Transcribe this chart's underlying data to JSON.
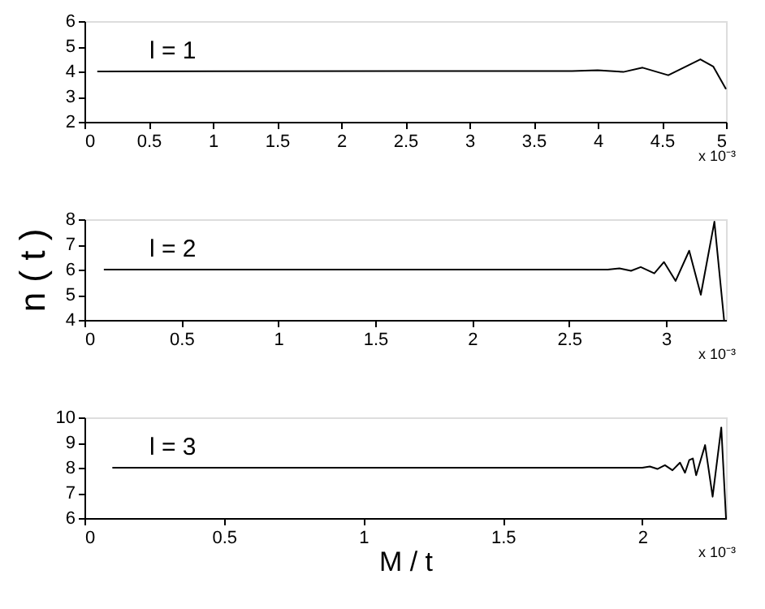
{
  "chart_data": [
    {
      "type": "line",
      "xlim": [
        0,
        5
      ],
      "xticks": [
        0,
        0.5,
        1,
        1.5,
        2,
        2.5,
        3,
        3.5,
        4,
        4.5,
        5
      ],
      "ylim": [
        2,
        6
      ],
      "yticks": [
        2,
        3,
        4,
        5,
        6
      ],
      "grid": false,
      "annotations": [
        "l = 1",
        "x 10⁻³"
      ],
      "series": [
        {
          "color": "#000000",
          "x": [
            0.1,
            3.8,
            4.0,
            4.1,
            4.2,
            4.35,
            4.55,
            4.8,
            4.9,
            5.0
          ],
          "values": [
            4,
            4.02,
            4.05,
            4.02,
            3.98,
            4.15,
            3.85,
            4.48,
            4.2,
            3.3
          ]
        }
      ]
    },
    {
      "type": "line",
      "xlim": [
        0,
        3.31
      ],
      "xticks": [
        0,
        0.5,
        1,
        1.5,
        2,
        2.5,
        3
      ],
      "ylim": [
        4,
        8
      ],
      "yticks": [
        4,
        5,
        6,
        7,
        8
      ],
      "ylabel": "n ( t )",
      "grid": false,
      "annotations": [
        "l = 2",
        "x 10⁻³"
      ],
      "series": [
        {
          "color": "#000000",
          "x": [
            0.1,
            2.6,
            2.7,
            2.76,
            2.82,
            2.87,
            2.94,
            2.99,
            3.05,
            3.12,
            3.18,
            3.25,
            3.3
          ],
          "values": [
            6,
            6,
            6.0,
            6.05,
            5.95,
            6.1,
            5.85,
            6.3,
            5.55,
            6.75,
            5.0,
            7.9,
            4.0
          ]
        }
      ]
    },
    {
      "type": "line",
      "xlim": [
        0,
        2.3
      ],
      "xticks": [
        0,
        0.5,
        1,
        1.5,
        2
      ],
      "ylim": [
        6,
        10
      ],
      "yticks": [
        6,
        7,
        8,
        9,
        10
      ],
      "xlabel": "M / t",
      "grid": false,
      "annotations": [
        "l = 3",
        "x 10⁻³"
      ],
      "series": [
        {
          "color": "#000000",
          "x": [
            0.1,
            2.0,
            2.027,
            2.054,
            2.081,
            2.108,
            2.135,
            2.153,
            2.168,
            2.181,
            2.193,
            2.225,
            2.252,
            2.283,
            2.3
          ],
          "values": [
            8,
            8,
            8.05,
            7.95,
            8.1,
            7.9,
            8.2,
            7.8,
            8.3,
            8.37,
            7.7,
            8.9,
            6.85,
            9.6,
            6.0
          ]
        }
      ]
    }
  ]
}
